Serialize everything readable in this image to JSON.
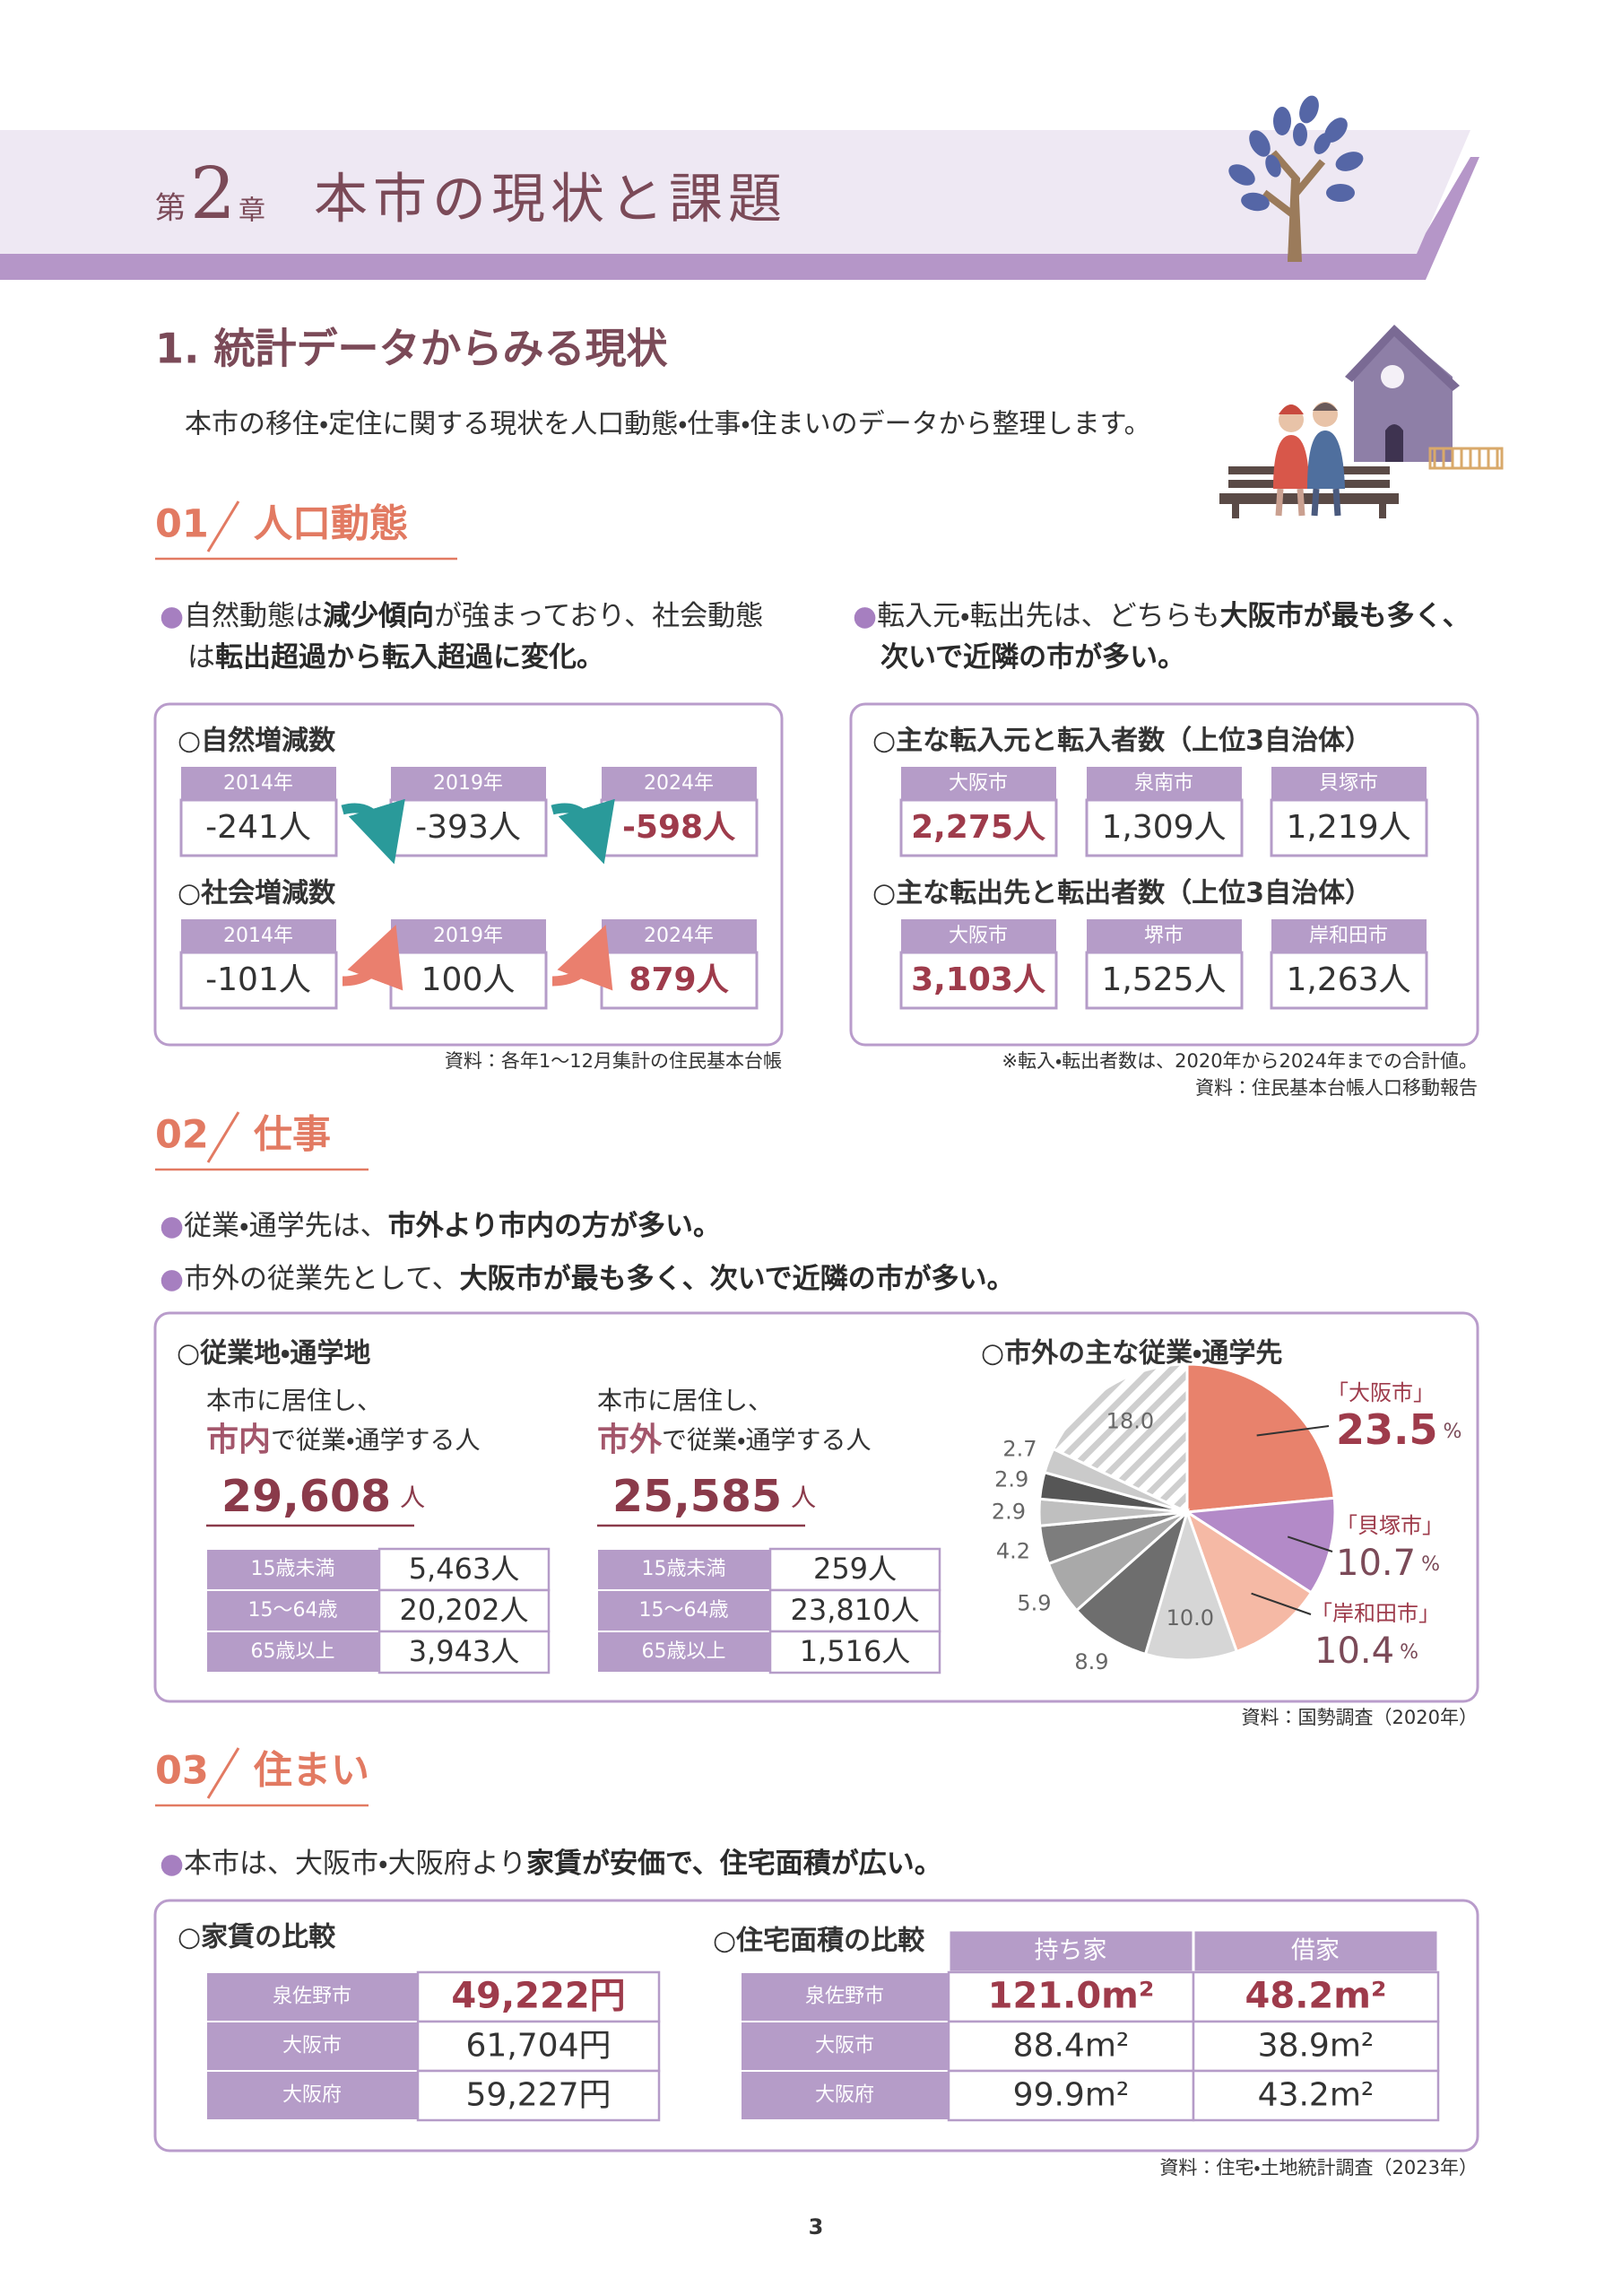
{
  "header": {
    "chapter_prefix": "第",
    "chapter_number": "2",
    "chapter_suffix": "章",
    "title": "本市の現状と課題"
  },
  "section": {
    "title": "1. 統計データからみる現状",
    "lead": "本市の移住・定住に関する現状を人口動態・仕事・住まいのデータから整理します。"
  },
  "population": {
    "number": "01",
    "title": "人口動態",
    "bullets": [
      [
        "自然動態は",
        "減少傾向",
        "が強まっており、社会動態",
        "は",
        "転出超過から転入超過に変化。"
      ],
      [
        "転入元・転出先は、どちらも",
        "大阪市が最も多く、",
        "次いで近隣の市が多い。"
      ]
    ],
    "natural": {
      "title": "○自然増減数",
      "cards": [
        {
          "head": "2014年",
          "value": "-241人"
        },
        {
          "head": "2019年",
          "value": "-393人"
        },
        {
          "head": "2024年",
          "value": "-598人"
        }
      ]
    },
    "social": {
      "title": "○社会増減数",
      "cards": [
        {
          "head": "2014年",
          "value": "-101人"
        },
        {
          "head": "2019年",
          "value": "100人"
        },
        {
          "head": "2024年",
          "value": "879人"
        }
      ]
    },
    "source": "資料：各年1～12月集計の住民基本台帳",
    "inflow": {
      "title": "○主な転入元と転入者数（上位3自治体）",
      "cards": [
        {
          "head": "大阪市",
          "value": "2,275人"
        },
        {
          "head": "泉南市",
          "value": "1,309人"
        },
        {
          "head": "貝塚市",
          "value": "1,219人"
        }
      ]
    },
    "outflow": {
      "title": "○主な転出先と転出者数（上位3自治体）",
      "cards": [
        {
          "head": "大阪市",
          "value": "3,103人"
        },
        {
          "head": "堺市",
          "value": "1,525人"
        },
        {
          "head": "岸和田市",
          "value": "1,263人"
        }
      ]
    },
    "notes": [
      "※転入・転出者数は、2020年から2024年までの合計値。",
      "資料：住民基本台帳人口移動報告"
    ]
  },
  "work": {
    "number": "02",
    "title": "仕事",
    "bullets": [
      [
        "従業・通学先は、",
        "市外より市内の方が多い。"
      ],
      [
        "市外の従業先として、",
        "大阪市が最も多く、次いで近隣の市が多い。"
      ]
    ],
    "workplace_title": "○従業地・通学地",
    "groups": [
      {
        "lead": "本市に居住し、",
        "place": "市内",
        "place_suffix": "で従業・通学する人",
        "total": "29,608",
        "total_unit": "人",
        "rows": [
          [
            "15歳未満",
            "5,463人"
          ],
          [
            "15～64歳",
            "20,202人"
          ],
          [
            "65歳以上",
            "3,943人"
          ]
        ]
      },
      {
        "lead": "本市に居住し、",
        "place": "市外",
        "place_suffix": "で従業・通学する人",
        "total": "25,585",
        "total_unit": "人",
        "rows": [
          [
            "15歳未満",
            "259人"
          ],
          [
            "15～64歳",
            "23,810人"
          ],
          [
            "65歳以上",
            "1,516人"
          ]
        ]
      }
    ],
    "source": "資料：国勢調査（2020年）"
  },
  "chart_data": {
    "type": "pie",
    "title": "○市外の主な従業・通学先",
    "categories": [
      "「大阪市」",
      "「貝塚市」",
      "「岸和田市」",
      null,
      null,
      null,
      null,
      null,
      null,
      null,
      null
    ],
    "values": [
      23.5,
      10.7,
      10.4,
      10.0,
      8.9,
      5.9,
      4.2,
      2.9,
      2.9,
      2.7,
      18.0
    ],
    "value_labels": [
      "23.5",
      "10.7",
      "10.4",
      "10.0",
      "8.9",
      "5.9",
      "4.2",
      "2.9",
      "2.9",
      "2.7",
      "18.0"
    ],
    "unit": "%",
    "colors": [
      "#e8826c",
      "#b38ac8",
      "#f5b9a5",
      "#d6d6d6",
      "#6e6e6e",
      "#a9a9a9",
      "#7d7d7d",
      "#bfbfbf",
      "#565656",
      "#cacaca",
      "#ffffff"
    ],
    "hatched": [
      false,
      false,
      false,
      false,
      false,
      false,
      false,
      false,
      false,
      false,
      true
    ]
  },
  "housing": {
    "number": "03",
    "title": "住まい",
    "bullets": [
      [
        "本市は、大阪市・大阪府より",
        "家賃が安価で、住宅面積が広い。"
      ]
    ],
    "rent": {
      "title": "○家賃の比較",
      "rows": [
        [
          "泉佐野市",
          "49,222円"
        ],
        [
          "大阪市",
          "61,704円"
        ],
        [
          "大阪府",
          "59,227円"
        ]
      ]
    },
    "area": {
      "title": "○住宅面積の比較",
      "columns": [
        "持ち家",
        "借家"
      ],
      "rows": [
        [
          "泉佐野市",
          "121.0m²",
          "48.2m²"
        ],
        [
          "大阪市",
          "88.4m²",
          "38.9m²"
        ],
        [
          "大阪府",
          "99.9m²",
          "43.2m²"
        ]
      ]
    },
    "source": "資料：住宅・土地統計調査（2023年）"
  },
  "page_number": "3"
}
